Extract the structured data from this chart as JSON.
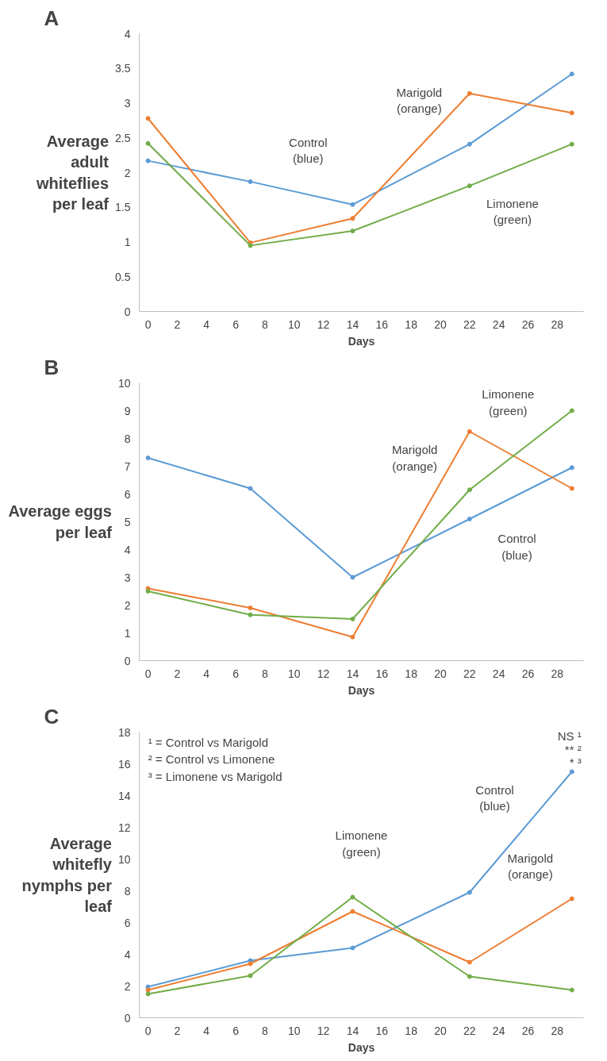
{
  "chart_data": [
    {
      "type": "line",
      "title": "A",
      "xlabel": "Days",
      "ylabel": "Average adult whiteflies per leaf",
      "x": [
        0,
        7,
        14,
        22,
        29
      ],
      "xlim": [
        -0.6,
        29.8
      ],
      "xticks": [
        0,
        2,
        4,
        6,
        8,
        10,
        12,
        14,
        16,
        18,
        20,
        22,
        24,
        26,
        28
      ],
      "ylim": [
        0,
        4
      ],
      "yticks": [
        0,
        0.5,
        1,
        1.5,
        2,
        2.5,
        3,
        3.5,
        4
      ],
      "marker": "circle",
      "line_style": "solid",
      "series": [
        {
          "color": "#5b9bd5",
          "values": [
            2.17,
            1.87,
            1.54,
            2.41,
            3.42
          ]
        },
        {
          "color": "#ed7d31",
          "values": [
            2.78,
            0.99,
            1.34,
            3.14,
            2.86
          ]
        },
        {
          "color": "#70ad47",
          "values": [
            2.42,
            0.95,
            1.16,
            1.81,
            2.41
          ]
        }
      ],
      "annotations": [
        "Control\n(blue)",
        "Marigold\n(orange)",
        "Limonene\n(green)"
      ]
    },
    {
      "type": "line",
      "title": "B",
      "xlabel": "Days",
      "ylabel": "Average eggs per leaf",
      "x": [
        0,
        7,
        14,
        22,
        29
      ],
      "xlim": [
        -0.6,
        29.8
      ],
      "xticks": [
        0,
        2,
        4,
        6,
        8,
        10,
        12,
        14,
        16,
        18,
        20,
        22,
        24,
        26,
        28
      ],
      "ylim": [
        0,
        10
      ],
      "yticks": [
        0,
        1,
        2,
        3,
        4,
        5,
        6,
        7,
        8,
        9,
        10
      ],
      "marker": "circle",
      "line_style": "solid",
      "series": [
        {
          "color": "#5b9bd5",
          "values": [
            7.3,
            6.2,
            3.0,
            5.1,
            6.95
          ]
        },
        {
          "color": "#ed7d31",
          "values": [
            2.6,
            1.9,
            0.85,
            8.25,
            6.2
          ]
        },
        {
          "color": "#70ad47",
          "values": [
            2.5,
            1.65,
            1.5,
            6.15,
            9.0
          ]
        }
      ],
      "annotations": [
        "Limonene\n(green)",
        "Marigold\n(orange)",
        "Control\n(blue)"
      ]
    },
    {
      "type": "line",
      "title": "C",
      "xlabel": "Days",
      "ylabel": "Average whitefly nymphs per leaf",
      "x": [
        0,
        7,
        14,
        22,
        29
      ],
      "xlim": [
        -0.6,
        29.8
      ],
      "xticks": [
        0,
        2,
        4,
        6,
        8,
        10,
        12,
        14,
        16,
        18,
        20,
        22,
        24,
        26,
        28
      ],
      "ylim": [
        0,
        18
      ],
      "yticks": [
        0,
        2,
        4,
        6,
        8,
        10,
        12,
        14,
        16,
        18
      ],
      "marker": "circle",
      "line_style": "solid",
      "series": [
        {
          "color": "#5b9bd5",
          "values": [
            1.95,
            3.6,
            4.4,
            7.9,
            15.5
          ]
        },
        {
          "color": "#ed7d31",
          "values": [
            1.75,
            3.4,
            6.7,
            3.5,
            7.5
          ]
        },
        {
          "color": "#70ad47",
          "values": [
            1.5,
            2.65,
            7.6,
            2.6,
            1.75
          ]
        }
      ],
      "annotations": [
        "¹ = Control vs Marigold",
        "² = Control vs Limonene",
        "³ = Limonene vs Marigold",
        "NS ¹",
        "** ²",
        "* ³",
        "Limonene\n(green)",
        "Control\n(blue)",
        "Marigold\n(orange)"
      ]
    }
  ]
}
